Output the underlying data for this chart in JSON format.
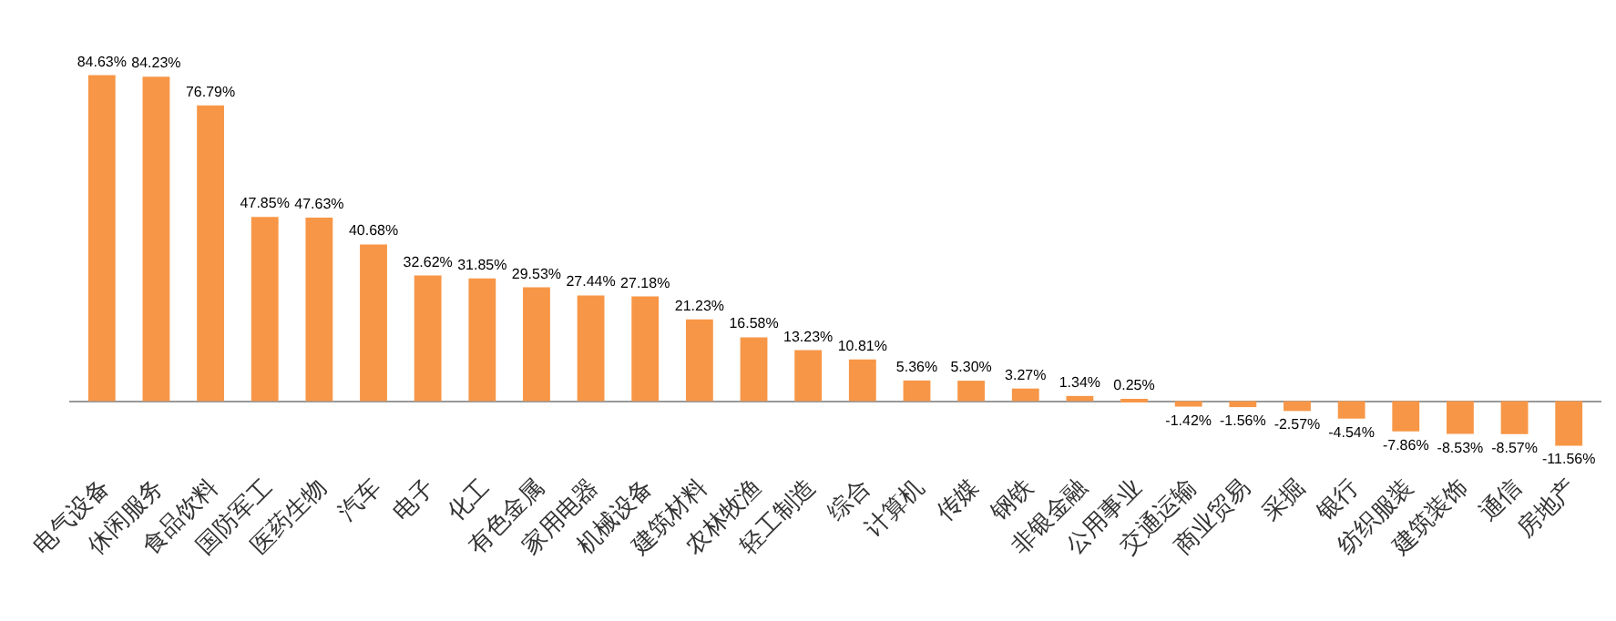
{
  "chart_data": {
    "type": "bar",
    "categories": [
      "电气设备",
      "休闲服务",
      "食品饮料",
      "国防军工",
      "医药生物",
      "汽车",
      "电子",
      "化工",
      "有色金属",
      "家用电器",
      "机械设备",
      "建筑材料",
      "农林牧渔",
      "轻工制造",
      "综合",
      "计算机",
      "传媒",
      "钢铁",
      "非银金融",
      "公用事业",
      "交通运输",
      "商业贸易",
      "采掘",
      "银行",
      "纺织服装",
      "建筑装饰",
      "通信",
      "房地产"
    ],
    "values": [
      84.63,
      84.23,
      76.79,
      47.85,
      47.63,
      40.68,
      32.62,
      31.85,
      29.53,
      27.44,
      27.18,
      21.23,
      16.58,
      13.23,
      10.81,
      5.36,
      5.3,
      3.27,
      1.34,
      0.25,
      -1.42,
      -1.56,
      -2.57,
      -4.54,
      -7.86,
      -8.53,
      -8.57,
      -11.56
    ],
    "value_labels": [
      "84.63%",
      "84.23%",
      "76.79%",
      "47.85%",
      "47.63%",
      "40.68%",
      "32.62%",
      "31.85%",
      "29.53%",
      "27.44%",
      "27.18%",
      "21.23%",
      "16.58%",
      "13.23%",
      "10.81%",
      "5.36%",
      "5.30%",
      "3.27%",
      "1.34%",
      "0.25%",
      "-1.42%",
      "-1.56%",
      "-2.57%",
      "-4.54%",
      "-7.86%",
      "-8.53%",
      "-8.57%",
      "-11.56%"
    ],
    "color": "#f79646",
    "grid": false,
    "legend": false
  }
}
